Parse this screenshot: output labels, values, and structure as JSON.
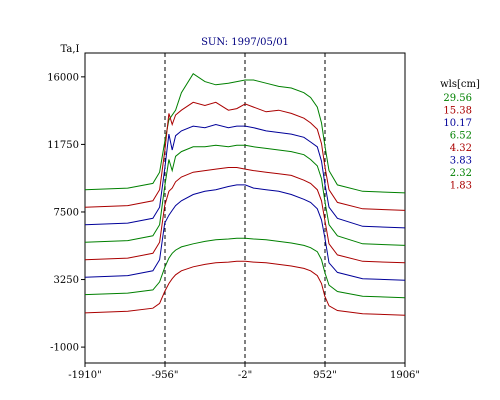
{
  "chart_data": {
    "type": "line",
    "title": "SUN: 1997/05/01",
    "ylabel": "Ta,I",
    "xlabel": "",
    "x_ticks": [
      {
        "value": -1910,
        "label": "-1910\""
      },
      {
        "value": -956,
        "label": "-956\""
      },
      {
        "value": -2,
        "label": "-2\""
      },
      {
        "value": 952,
        "label": "952\""
      },
      {
        "value": 1906,
        "label": "1906\""
      }
    ],
    "y_ticks": [
      {
        "value": 16000,
        "label": "16000"
      },
      {
        "value": 11750,
        "label": "11750"
      },
      {
        "value": 7500,
        "label": "7500"
      },
      {
        "value": 3250,
        "label": "3250"
      },
      {
        "value": -1000,
        "label": "-1000"
      }
    ],
    "xlim": [
      -1910,
      1906
    ],
    "ylim": [
      -2000,
      17500
    ],
    "vertical_markers": [
      -956,
      -2,
      952
    ],
    "legend_title": "wls[cm]",
    "colors": {
      "green": "#008000",
      "red": "#aa0000",
      "blue": "#000099",
      "title": "#000080"
    },
    "series": [
      {
        "name": "29.56",
        "color": "#008000",
        "x": [
          -1910,
          -1400,
          -1100,
          -1020,
          -960,
          -910,
          -830,
          -760,
          -620,
          -480,
          -350,
          -200,
          -100,
          0,
          100,
          250,
          400,
          550,
          700,
          780,
          860,
          910,
          950,
          1000,
          1100,
          1400,
          1906
        ],
        "y": [
          8900,
          9000,
          9300,
          10000,
          11900,
          13300,
          13900,
          15000,
          16200,
          15700,
          15500,
          15600,
          15700,
          15800,
          15800,
          15600,
          15400,
          15300,
          15000,
          14700,
          14100,
          13100,
          11700,
          10100,
          9200,
          8800,
          8700
        ]
      },
      {
        "name": "15.38",
        "color": "#aa0000",
        "x": [
          -1910,
          -1400,
          -1100,
          -1020,
          -960,
          -910,
          -870,
          -830,
          -760,
          -620,
          -480,
          -350,
          -200,
          -100,
          0,
          100,
          250,
          400,
          550,
          700,
          780,
          860,
          910,
          950,
          1000,
          1100,
          1400,
          1906
        ],
        "y": [
          7800,
          7900,
          8200,
          8900,
          11300,
          13700,
          13000,
          13600,
          13900,
          14400,
          14200,
          14400,
          13900,
          14000,
          14300,
          14100,
          13800,
          13900,
          13700,
          13400,
          13100,
          12700,
          11800,
          10400,
          8900,
          8100,
          7700,
          7600
        ]
      },
      {
        "name": "10.17",
        "color": "#000099",
        "x": [
          -1910,
          -1400,
          -1100,
          -1020,
          -960,
          -910,
          -870,
          -830,
          -760,
          -620,
          -480,
          -350,
          -200,
          -100,
          0,
          100,
          250,
          400,
          550,
          700,
          780,
          860,
          910,
          950,
          1000,
          1100,
          1400,
          1906
        ],
        "y": [
          6700,
          6800,
          7100,
          7800,
          10200,
          12400,
          11400,
          12300,
          12600,
          12900,
          12800,
          13000,
          12800,
          12900,
          12900,
          12800,
          12600,
          12500,
          12400,
          12200,
          11900,
          11600,
          10700,
          9300,
          7800,
          7100,
          6600,
          6500
        ]
      },
      {
        "name": "6.52",
        "color": "#008000",
        "x": [
          -1910,
          -1400,
          -1100,
          -1020,
          -960,
          -910,
          -870,
          -830,
          -760,
          -620,
          -480,
          -350,
          -200,
          -100,
          0,
          100,
          250,
          400,
          550,
          700,
          780,
          860,
          910,
          950,
          1000,
          1100,
          1400,
          1906
        ],
        "y": [
          5600,
          5700,
          6000,
          6700,
          9100,
          10800,
          10100,
          11000,
          11300,
          11600,
          11600,
          11700,
          11600,
          11700,
          11700,
          11600,
          11500,
          11400,
          11300,
          11100,
          10800,
          10400,
          9600,
          8200,
          6700,
          6000,
          5500,
          5400
        ]
      },
      {
        "name": "4.32",
        "color": "#aa0000",
        "x": [
          -1910,
          -1400,
          -1100,
          -1020,
          -960,
          -910,
          -870,
          -830,
          -760,
          -620,
          -480,
          -350,
          -200,
          -100,
          0,
          100,
          250,
          400,
          550,
          700,
          780,
          860,
          910,
          950,
          1000,
          1100,
          1400,
          1906
        ],
        "y": [
          4500,
          4600,
          4900,
          5600,
          7900,
          8800,
          9000,
          9400,
          9700,
          10000,
          10100,
          10200,
          10300,
          10300,
          10200,
          10100,
          10000,
          9900,
          9800,
          9500,
          9300,
          8900,
          8200,
          7000,
          5500,
          4800,
          4400,
          4300
        ]
      },
      {
        "name": "3.83",
        "color": "#000099",
        "x": [
          -1910,
          -1400,
          -1100,
          -1020,
          -960,
          -910,
          -870,
          -830,
          -760,
          -620,
          -480,
          -350,
          -200,
          -100,
          0,
          100,
          250,
          400,
          550,
          700,
          780,
          860,
          910,
          950,
          1000,
          1100,
          1400,
          1906
        ],
        "y": [
          3400,
          3500,
          3800,
          4500,
          6800,
          7300,
          7600,
          7900,
          8200,
          8600,
          8800,
          8900,
          9100,
          9200,
          9200,
          9000,
          8900,
          8800,
          8600,
          8300,
          8100,
          7700,
          7000,
          5900,
          4300,
          3700,
          3300,
          3200
        ]
      },
      {
        "name": "2.32",
        "color": "#008000",
        "x": [
          -1910,
          -1400,
          -1100,
          -1020,
          -960,
          -910,
          -870,
          -830,
          -760,
          -620,
          -480,
          -350,
          -200,
          -100,
          0,
          100,
          250,
          400,
          550,
          700,
          780,
          860,
          910,
          950,
          1000,
          1100,
          1400,
          1906
        ],
        "y": [
          2300,
          2400,
          2600,
          3100,
          4000,
          4600,
          4900,
          5100,
          5300,
          5500,
          5650,
          5750,
          5800,
          5850,
          5850,
          5800,
          5750,
          5650,
          5550,
          5400,
          5250,
          5000,
          4500,
          3700,
          2900,
          2500,
          2200,
          2100
        ]
      },
      {
        "name": "1.83",
        "color": "#aa0000",
        "x": [
          -1910,
          -1400,
          -1100,
          -1020,
          -960,
          -910,
          -870,
          -830,
          -760,
          -620,
          -480,
          -350,
          -200,
          -100,
          0,
          100,
          250,
          400,
          550,
          700,
          780,
          860,
          910,
          950,
          1000,
          1100,
          1400,
          1906
        ],
        "y": [
          1150,
          1250,
          1450,
          1750,
          2500,
          3000,
          3300,
          3550,
          3800,
          4050,
          4200,
          4300,
          4350,
          4400,
          4400,
          4350,
          4300,
          4200,
          4100,
          3950,
          3800,
          3500,
          3000,
          2200,
          1600,
          1300,
          1100,
          1000
        ]
      }
    ]
  }
}
